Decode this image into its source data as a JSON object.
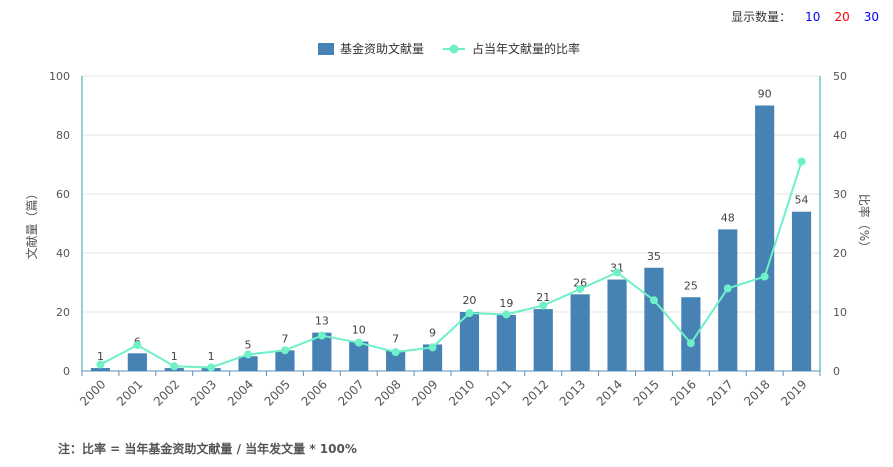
{
  "controls": {
    "label": "显示数量：",
    "options": [
      {
        "label": "10",
        "color": "#0000ff"
      },
      {
        "label": "20",
        "color": "#ff0000"
      },
      {
        "label": "30",
        "color": "#0000ff"
      }
    ]
  },
  "footnote": "注：比率 = 当年基金资助文献量 / 当年发文量 * 100%",
  "chart_data": {
    "type": "bar",
    "categories": [
      "2000",
      "2001",
      "2002",
      "2003",
      "2004",
      "2005",
      "2006",
      "2007",
      "2008",
      "2009",
      "2010",
      "2011",
      "2012",
      "2013",
      "2014",
      "2015",
      "2016",
      "2017",
      "2018",
      "2019"
    ],
    "series": [
      {
        "name": "基金资助文献量",
        "type": "bar",
        "axis": "left",
        "color": "#4682b4",
        "values": [
          1,
          6,
          1,
          1,
          5,
          7,
          13,
          10,
          7,
          9,
          20,
          19,
          21,
          26,
          31,
          35,
          25,
          48,
          90,
          54
        ]
      },
      {
        "name": "占当年文献量的比率",
        "type": "line",
        "axis": "right",
        "color": "#6ef0c8",
        "values": [
          1.1,
          4.4,
          0.8,
          0.6,
          2.8,
          3.5,
          6.0,
          4.8,
          3.2,
          4.0,
          9.8,
          9.6,
          11.1,
          13.9,
          16.7,
          12.0,
          4.7,
          14.0,
          16.0,
          35.5
        ]
      }
    ],
    "yLeft": {
      "label": "文献量（篇）",
      "min": 0,
      "max": 100,
      "ticks": [
        "0",
        "20",
        "40",
        "60",
        "80",
        "100"
      ]
    },
    "yRight": {
      "label": "比率（%）",
      "min": 0,
      "max": 50,
      "ticks": [
        "0",
        "10",
        "20",
        "30",
        "40",
        "50"
      ]
    },
    "grid": true,
    "legend": "top-center"
  }
}
